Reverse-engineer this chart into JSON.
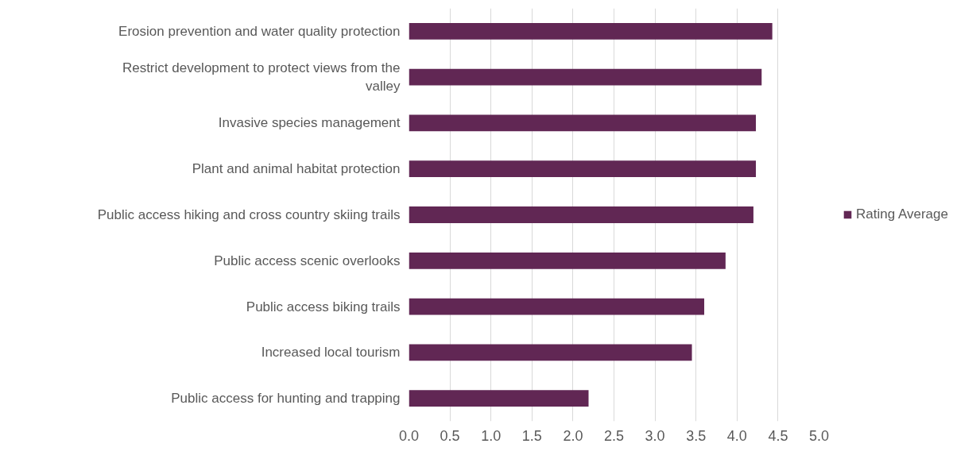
{
  "chart_data": {
    "type": "bar",
    "orientation": "horizontal",
    "categories": [
      "Erosion prevention and water quality protection",
      "Restrict development to protect views from the valley",
      "Invasive species management",
      "Plant and animal habitat protection",
      "Public access hiking and cross country skiing trails",
      "Public access scenic overlooks",
      "Public access biking trails",
      "Increased local tourism",
      "Public access for hunting and trapping"
    ],
    "series": [
      {
        "name": "Rating Average",
        "color": "#612754",
        "values": [
          4.43,
          4.3,
          4.23,
          4.23,
          4.2,
          3.86,
          3.6,
          3.45,
          2.19
        ]
      }
    ],
    "xlim": [
      0,
      5
    ],
    "xticks": [
      {
        "value": 0,
        "label": "0.0"
      },
      0.5,
      {
        "value": 1,
        "label": "1.0"
      },
      1.5,
      {
        "value": 2,
        "label": "2.0"
      },
      2.5,
      {
        "value": 3,
        "label": "3.0"
      },
      3.5,
      {
        "value": 4,
        "label": "4.0"
      },
      4.5,
      {
        "value": 5,
        "label": "5.0"
      }
    ],
    "grid": "x",
    "legend": "right"
  }
}
